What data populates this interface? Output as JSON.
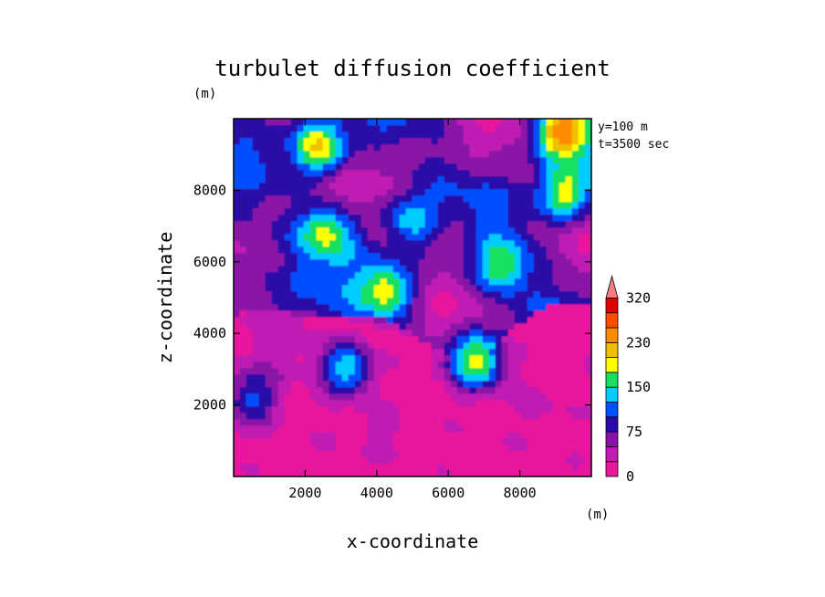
{
  "chart_data": {
    "type": "contour",
    "title": "turbulet diffusion coefficient",
    "xlabel": "x-coordinate",
    "ylabel": "z-coordinate",
    "x_unit": "(m)",
    "y_unit": "(m)",
    "xlim": [
      0,
      10000
    ],
    "ylim": [
      0,
      10000
    ],
    "x_ticks": [
      2000,
      4000,
      6000,
      8000
    ],
    "y_ticks": [
      2000,
      4000,
      6000,
      8000
    ],
    "annotations": [
      "y=100 m",
      "t=3500 sec"
    ],
    "colorbar": {
      "levels": [
        0,
        25,
        50,
        75,
        100,
        125,
        150,
        175,
        200,
        230,
        260,
        290,
        320
      ],
      "labels": [
        {
          "text": "320",
          "level": 12
        },
        {
          "text": "230",
          "level": 9
        },
        {
          "text": "150",
          "level": 6
        },
        {
          "text": "75",
          "level": 3
        },
        {
          "text": "0",
          "level": 0
        }
      ],
      "colors": [
        "#e8189c",
        "#c01cb4",
        "#8a14a8",
        "#2a0aa8",
        "#0050ff",
        "#00ccff",
        "#18e060",
        "#ffff00",
        "#f0c000",
        "#ff8c00",
        "#ff4c00",
        "#e00000"
      ],
      "extend_color": "#f28080"
    },
    "field_features": [
      {
        "x": 1000,
        "z": 6000,
        "value": 70
      },
      {
        "x": 2400,
        "z": 9200,
        "value": 200
      },
      {
        "x": 2600,
        "z": 6800,
        "value": 190
      },
      {
        "x": 4200,
        "z": 5200,
        "value": 200
      },
      {
        "x": 5000,
        "z": 7200,
        "value": 140
      },
      {
        "x": 6200,
        "z": 6600,
        "value": 60
      },
      {
        "x": 7500,
        "z": 5900,
        "value": 180
      },
      {
        "x": 9200,
        "z": 9600,
        "value": 260
      },
      {
        "x": 9300,
        "z": 8000,
        "value": 190
      },
      {
        "x": 6800,
        "z": 3200,
        "value": 190
      },
      {
        "x": 3200,
        "z": 3000,
        "value": 150
      },
      {
        "x": 500,
        "z": 2200,
        "value": 110
      },
      {
        "x": 4000,
        "z": 1400,
        "value": 40
      },
      {
        "x": 3000,
        "z": 1200,
        "value": 20
      },
      {
        "x": 8500,
        "z": 1800,
        "value": 30
      },
      {
        "x": 5000,
        "z": 2400,
        "value": 5
      }
    ]
  }
}
